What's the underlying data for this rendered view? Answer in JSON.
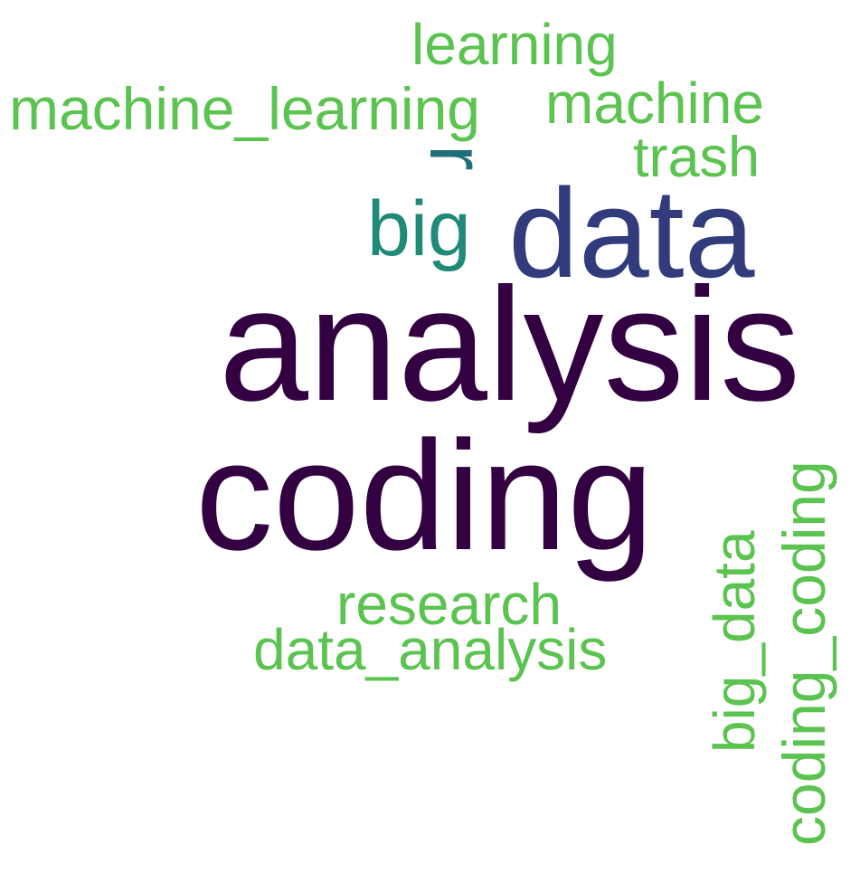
{
  "words": [
    {
      "text": "analysis",
      "color": "#330042"
    },
    {
      "text": "coding",
      "color": "#330042"
    },
    {
      "text": "data",
      "color": "#323c7c"
    },
    {
      "text": "big",
      "color": "#1f8a77"
    },
    {
      "text": "r",
      "color": "#1f6f7a"
    },
    {
      "text": "learning",
      "color": "#5bc34f"
    },
    {
      "text": "machine_learning",
      "color": "#5bc34f"
    },
    {
      "text": "machine",
      "color": "#5bc34f"
    },
    {
      "text": "trash",
      "color": "#5bc34f"
    },
    {
      "text": "research",
      "color": "#5bc34f"
    },
    {
      "text": "data_analysis",
      "color": "#5bc34f"
    },
    {
      "text": "big_data",
      "color": "#5bc34f"
    },
    {
      "text": "coding_coding",
      "color": "#5bc34f"
    }
  ]
}
